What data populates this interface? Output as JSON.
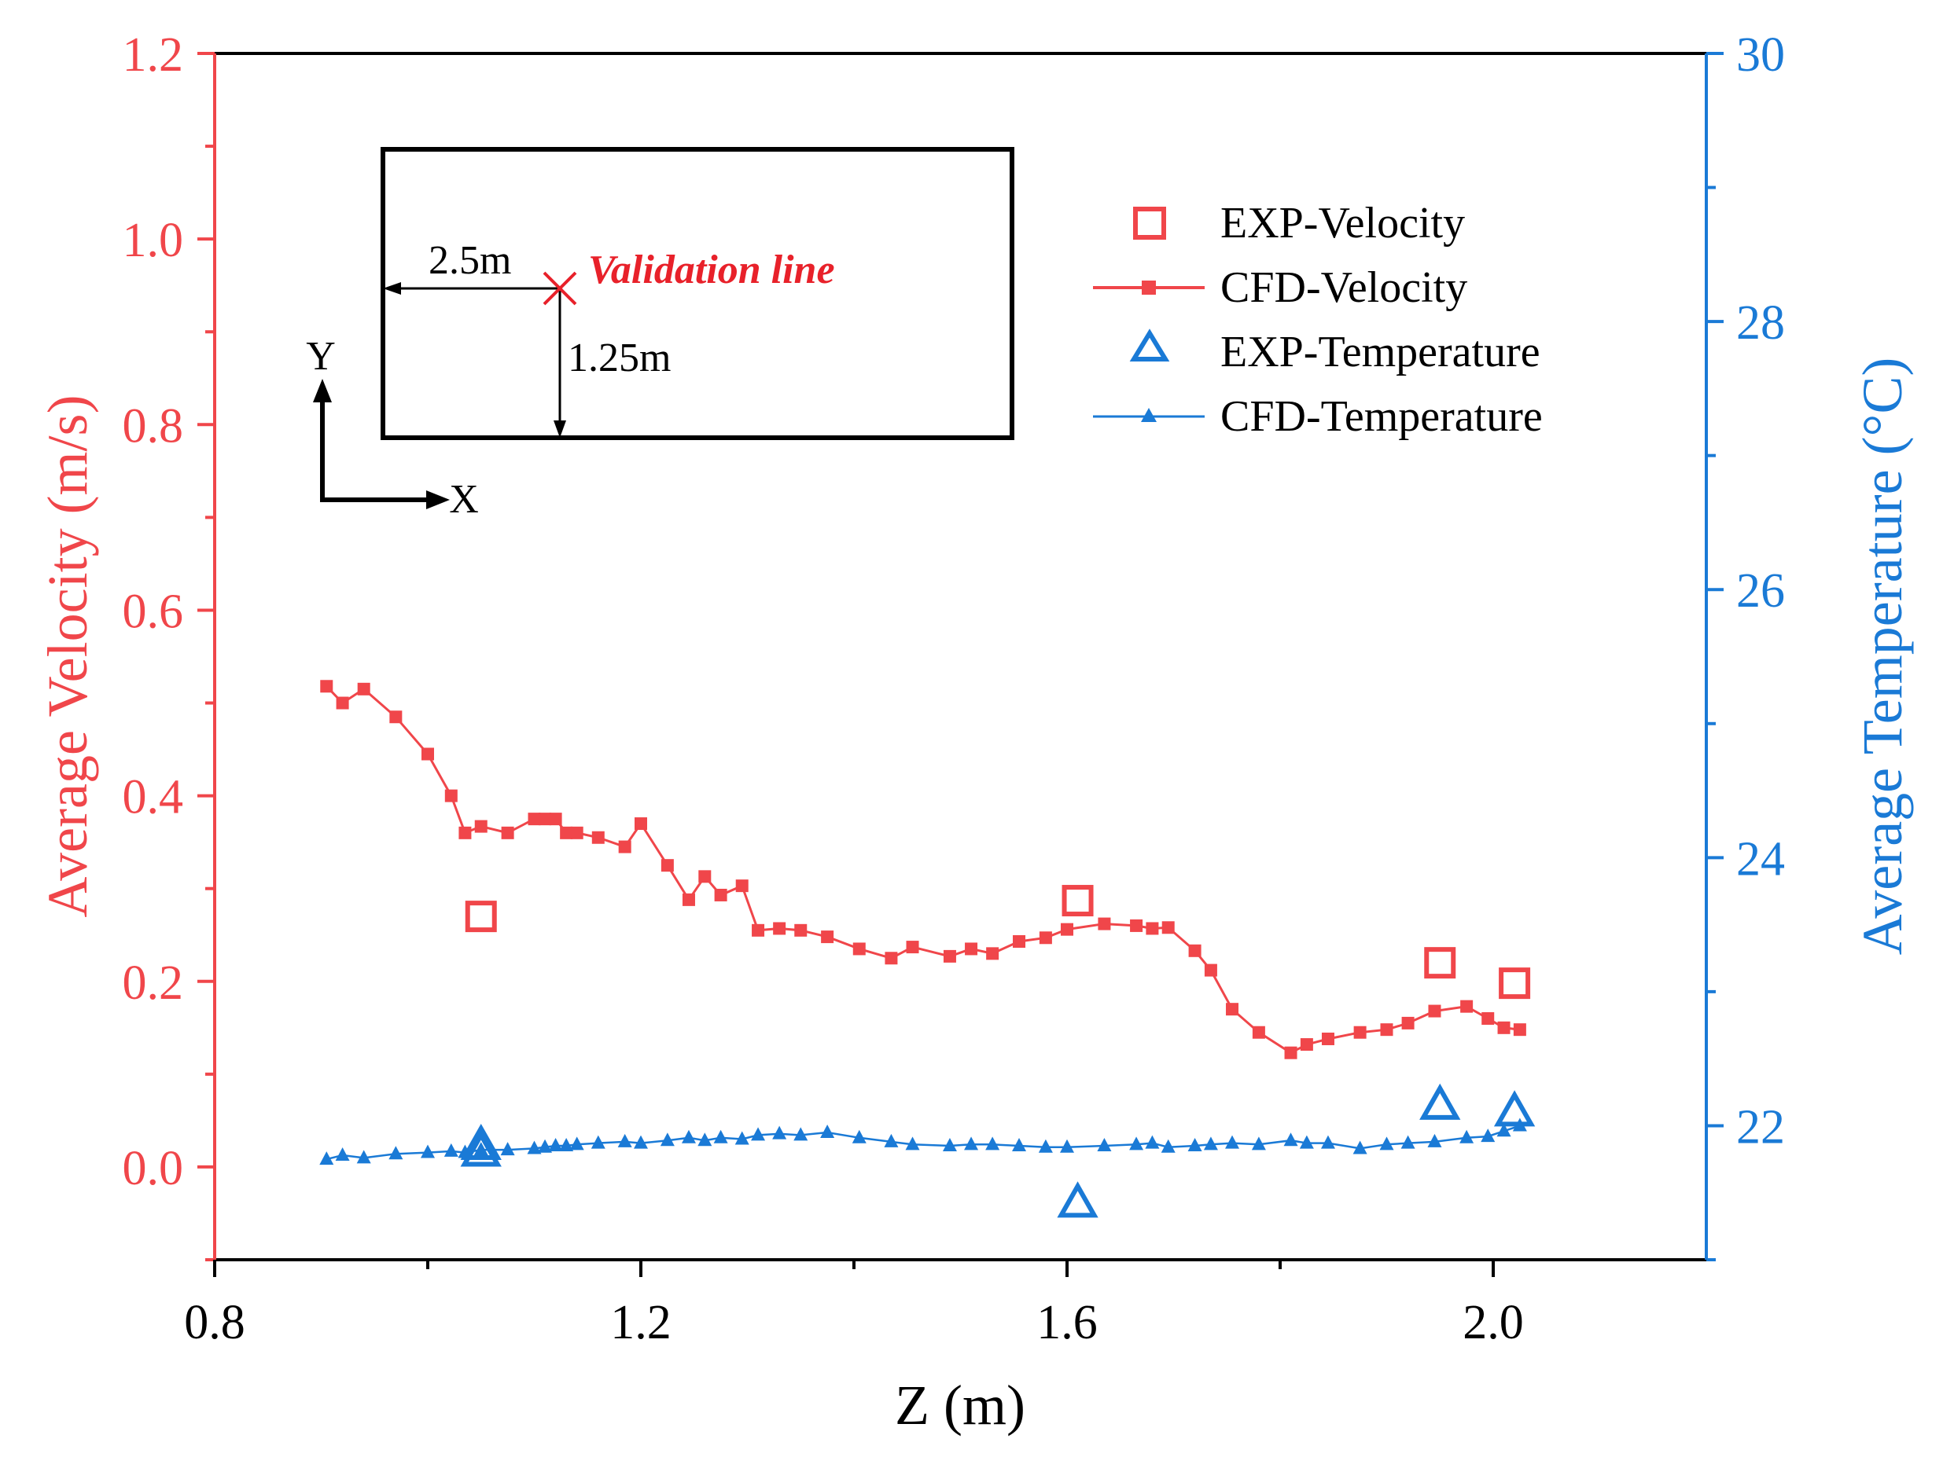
{
  "colors": {
    "velocity": "#f0464a",
    "temperature": "#1a7ad6",
    "frame": "#000000",
    "annotation": "#e8212a"
  },
  "chart_data": {
    "type": "line+scatter",
    "xlabel": "Z (m)",
    "ylabel_left": "Average Velocity (m/s)",
    "ylabel_right": "Average Temperature (°C)",
    "xlim": [
      0.8,
      2.2
    ],
    "ylim_left": [
      -0.1,
      1.2
    ],
    "ylim_right": [
      21.0,
      30.0
    ],
    "x_ticks": [
      0.8,
      1.2,
      1.6,
      2.0
    ],
    "x_tick_labels": [
      "0.8",
      "1.2",
      "1.6",
      "2.0"
    ],
    "y_left_ticks": [
      0.0,
      0.2,
      0.4,
      0.6,
      0.8,
      1.0,
      1.2
    ],
    "y_left_tick_labels": [
      "0.0",
      "0.2",
      "0.4",
      "0.6",
      "0.8",
      "1.0",
      "1.2"
    ],
    "y_right_ticks": [
      22,
      24,
      26,
      28,
      30
    ],
    "y_right_tick_labels": [
      "22",
      "24",
      "26",
      "28",
      "30"
    ],
    "legend": {
      "position": "top-right",
      "entries": [
        "EXP-Velocity",
        "CFD-Velocity",
        "EXP-Temperature",
        "CFD-Temperature"
      ]
    },
    "series": [
      {
        "name": "EXP-Velocity",
        "axis": "left",
        "marker": "open-square",
        "line": false,
        "x": [
          1.05,
          1.61,
          1.95,
          2.02
        ],
        "y": [
          0.27,
          0.287,
          0.22,
          0.198
        ]
      },
      {
        "name": "CFD-Velocity",
        "axis": "left",
        "marker": "filled-square",
        "line": true,
        "x": [
          0.905,
          0.92,
          0.94,
          0.97,
          1.0,
          1.022,
          1.035,
          1.05,
          1.075,
          1.1,
          1.11,
          1.12,
          1.13,
          1.14,
          1.16,
          1.185,
          1.2,
          1.225,
          1.245,
          1.26,
          1.275,
          1.295,
          1.31,
          1.33,
          1.35,
          1.375,
          1.405,
          1.435,
          1.455,
          1.49,
          1.51,
          1.53,
          1.555,
          1.58,
          1.6,
          1.635,
          1.665,
          1.68,
          1.695,
          1.72,
          1.735,
          1.755,
          1.78,
          1.81,
          1.825,
          1.845,
          1.875,
          1.9,
          1.92,
          1.945,
          1.975,
          1.995,
          2.01,
          2.025
        ],
        "y": [
          0.518,
          0.5,
          0.515,
          0.485,
          0.445,
          0.4,
          0.36,
          0.367,
          0.36,
          0.375,
          0.375,
          0.375,
          0.36,
          0.36,
          0.355,
          0.345,
          0.37,
          0.325,
          0.288,
          0.313,
          0.293,
          0.303,
          0.255,
          0.257,
          0.255,
          0.248,
          0.235,
          0.225,
          0.237,
          0.227,
          0.235,
          0.23,
          0.243,
          0.247,
          0.256,
          0.262,
          0.26,
          0.257,
          0.258,
          0.233,
          0.212,
          0.17,
          0.145,
          0.123,
          0.132,
          0.138,
          0.145,
          0.148,
          0.155,
          0.168,
          0.173,
          0.16,
          0.15,
          0.148
        ]
      },
      {
        "name": "EXP-Temperature",
        "axis": "right",
        "marker": "open-triangle",
        "line": false,
        "x": [
          1.05,
          1.05,
          1.61,
          1.95,
          2.02
        ],
        "y": [
          21.8,
          21.85,
          21.42,
          22.15,
          22.1
        ]
      },
      {
        "name": "CFD-Temperature",
        "axis": "right",
        "marker": "filled-triangle",
        "line": true,
        "x": [
          0.905,
          0.92,
          0.94,
          0.97,
          1.0,
          1.022,
          1.035,
          1.05,
          1.075,
          1.1,
          1.11,
          1.12,
          1.13,
          1.14,
          1.16,
          1.185,
          1.2,
          1.225,
          1.245,
          1.26,
          1.275,
          1.295,
          1.31,
          1.33,
          1.35,
          1.375,
          1.405,
          1.435,
          1.455,
          1.49,
          1.51,
          1.53,
          1.555,
          1.58,
          1.6,
          1.635,
          1.665,
          1.68,
          1.695,
          1.72,
          1.735,
          1.755,
          1.78,
          1.81,
          1.825,
          1.845,
          1.875,
          1.9,
          1.92,
          1.945,
          1.975,
          1.995,
          2.01,
          2.025
        ],
        "y": [
          21.75,
          21.78,
          21.76,
          21.79,
          21.8,
          21.81,
          21.8,
          21.82,
          21.82,
          21.83,
          21.84,
          21.85,
          21.85,
          21.86,
          21.87,
          21.88,
          21.87,
          21.89,
          21.91,
          21.89,
          21.91,
          21.9,
          21.93,
          21.94,
          21.93,
          21.95,
          21.91,
          21.88,
          21.86,
          21.85,
          21.86,
          21.86,
          21.85,
          21.84,
          21.84,
          21.85,
          21.86,
          21.87,
          21.84,
          21.85,
          21.86,
          21.87,
          21.86,
          21.89,
          21.87,
          21.87,
          21.83,
          21.86,
          21.87,
          21.88,
          21.91,
          21.92,
          21.96,
          22.0
        ]
      }
    ]
  },
  "inset": {
    "label_x": "X",
    "label_y": "Y",
    "dim_horizontal": "2.5m",
    "dim_vertical": "1.25m",
    "annotation": "Validation line"
  }
}
